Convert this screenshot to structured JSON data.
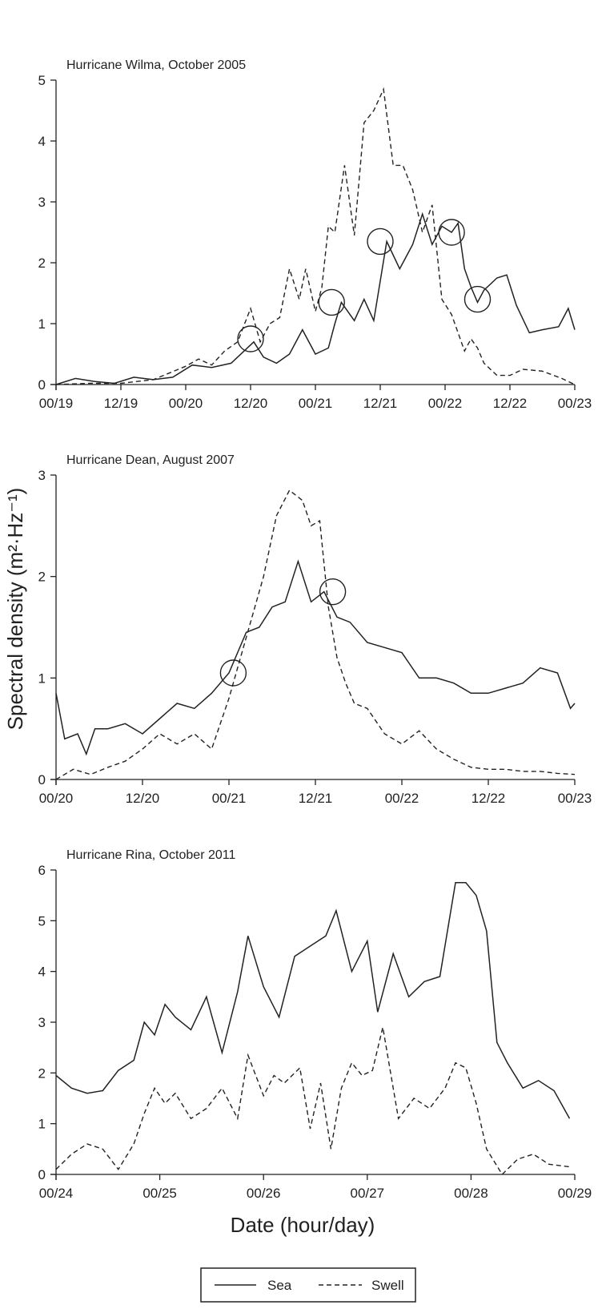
{
  "ylabel": "Spectral density (m²·Hz⁻¹)",
  "xlabel": "Date (hour/day)",
  "legend": [
    {
      "name": "Sea",
      "style": "solid"
    },
    {
      "name": "Swell",
      "style": "dashed"
    }
  ],
  "chart_data": [
    {
      "type": "line",
      "title": "Hurricane Wilma, October 2005",
      "ylabel": "Spectral density (m²·Hz⁻¹)",
      "xlabel": "Date (hour/day)",
      "xticks": [
        "00/19",
        "12/19",
        "00/20",
        "12/20",
        "00/21",
        "12/21",
        "00/22",
        "12/22",
        "00/23"
      ],
      "xlim": [
        0,
        8
      ],
      "ylim": [
        0,
        5
      ],
      "yticks": [
        "0",
        "1",
        "2",
        "3",
        "4",
        "5"
      ],
      "series": [
        {
          "name": "Sea",
          "style": "solid",
          "x": [
            0,
            0.3,
            0.6,
            0.9,
            1.2,
            1.5,
            1.8,
            2.1,
            2.4,
            2.7,
            2.9,
            3.05,
            3.2,
            3.4,
            3.6,
            3.8,
            4.0,
            4.2,
            4.3,
            4.4,
            4.6,
            4.75,
            4.9,
            5.1,
            5.3,
            5.5,
            5.65,
            5.8,
            5.95,
            6.1,
            6.2,
            6.3,
            6.4,
            6.5,
            6.6,
            6.8,
            6.95,
            7.1,
            7.3,
            7.5,
            7.75,
            7.9,
            8.0
          ],
          "y": [
            0,
            0.1,
            0.05,
            0.02,
            0.12,
            0.08,
            0.12,
            0.32,
            0.28,
            0.35,
            0.55,
            0.7,
            0.45,
            0.35,
            0.5,
            0.9,
            0.5,
            0.6,
            1.0,
            1.35,
            1.05,
            1.4,
            1.05,
            2.35,
            1.9,
            2.3,
            2.8,
            2.3,
            2.6,
            2.5,
            2.65,
            1.9,
            1.6,
            1.35,
            1.55,
            1.75,
            1.8,
            1.3,
            0.85,
            0.9,
            0.95,
            1.25,
            0.9
          ]
        },
        {
          "name": "Swell",
          "style": "dashed",
          "x": [
            0,
            0.5,
            1.0,
            1.5,
            2.0,
            2.2,
            2.4,
            2.6,
            2.8,
            3.0,
            3.15,
            3.3,
            3.45,
            3.6,
            3.75,
            3.85,
            4.0,
            4.1,
            4.2,
            4.3,
            4.45,
            4.6,
            4.75,
            4.9,
            5.05,
            5.2,
            5.35,
            5.5,
            5.65,
            5.8,
            5.95,
            6.1,
            6.3,
            6.4,
            6.5,
            6.6,
            6.8,
            7.0,
            7.2,
            7.5,
            7.8,
            8.0
          ],
          "y": [
            0,
            0.02,
            0.02,
            0.08,
            0.3,
            0.42,
            0.32,
            0.55,
            0.7,
            1.25,
            0.7,
            1.0,
            1.1,
            1.9,
            1.4,
            1.9,
            1.2,
            1.6,
            2.6,
            2.5,
            3.6,
            2.45,
            4.3,
            4.5,
            4.85,
            3.6,
            3.6,
            3.2,
            2.5,
            2.95,
            1.4,
            1.15,
            0.55,
            0.75,
            0.6,
            0.35,
            0.15,
            0.15,
            0.25,
            0.22,
            0.1,
            0.0
          ]
        }
      ],
      "circles": [
        {
          "x": 3.0,
          "y": 0.75
        },
        {
          "x": 4.25,
          "y": 1.35
        },
        {
          "x": 5.0,
          "y": 2.35
        },
        {
          "x": 6.1,
          "y": 2.5
        },
        {
          "x": 6.5,
          "y": 1.4
        }
      ]
    },
    {
      "type": "line",
      "title": "Hurricane Dean, August 2007",
      "ylabel": "Spectral density (m²·Hz⁻¹)",
      "xlabel": "Date (hour/day)",
      "xticks": [
        "00/20",
        "12/20",
        "00/21",
        "12/21",
        "00/22",
        "12/22",
        "00/23"
      ],
      "xlim": [
        0,
        6
      ],
      "ylim": [
        0,
        3
      ],
      "yticks": [
        "0",
        "1",
        "2",
        "3"
      ],
      "series": [
        {
          "name": "Sea",
          "style": "solid",
          "x": [
            0,
            0.1,
            0.25,
            0.35,
            0.45,
            0.6,
            0.8,
            1.0,
            1.2,
            1.4,
            1.6,
            1.8,
            2.0,
            2.2,
            2.35,
            2.5,
            2.65,
            2.8,
            2.95,
            3.1,
            3.25,
            3.4,
            3.6,
            3.8,
            4.0,
            4.2,
            4.4,
            4.6,
            4.8,
            5.0,
            5.2,
            5.4,
            5.6,
            5.8,
            5.95,
            6.0
          ],
          "y": [
            0.85,
            0.4,
            0.45,
            0.25,
            0.5,
            0.5,
            0.55,
            0.45,
            0.6,
            0.75,
            0.7,
            0.85,
            1.05,
            1.45,
            1.5,
            1.7,
            1.75,
            2.15,
            1.75,
            1.85,
            1.6,
            1.55,
            1.35,
            1.3,
            1.25,
            1.0,
            1.0,
            0.95,
            0.85,
            0.85,
            0.9,
            0.95,
            1.1,
            1.05,
            0.7,
            0.75
          ]
        },
        {
          "name": "Swell",
          "style": "dashed",
          "x": [
            0,
            0.2,
            0.4,
            0.6,
            0.8,
            1.0,
            1.2,
            1.4,
            1.6,
            1.8,
            2.0,
            2.2,
            2.4,
            2.55,
            2.7,
            2.85,
            2.95,
            3.05,
            3.15,
            3.25,
            3.35,
            3.45,
            3.6,
            3.8,
            4.0,
            4.2,
            4.4,
            4.6,
            4.8,
            5.0,
            5.2,
            5.4,
            5.6,
            5.8,
            6.0
          ],
          "y": [
            0.0,
            0.1,
            0.05,
            0.12,
            0.18,
            0.3,
            0.45,
            0.35,
            0.45,
            0.3,
            0.8,
            1.4,
            2.0,
            2.6,
            2.85,
            2.75,
            2.5,
            2.55,
            1.7,
            1.2,
            0.95,
            0.75,
            0.7,
            0.45,
            0.35,
            0.48,
            0.3,
            0.2,
            0.12,
            0.1,
            0.1,
            0.08,
            0.08,
            0.06,
            0.05
          ]
        }
      ],
      "circles": [
        {
          "x": 2.05,
          "y": 1.05
        },
        {
          "x": 3.2,
          "y": 1.85
        }
      ]
    },
    {
      "type": "line",
      "title": "Hurricane Rina, October 2011",
      "ylabel": "Spectral density (m²·Hz⁻¹)",
      "xlabel": "Date (hour/day)",
      "xticks": [
        "00/24",
        "00/25",
        "00/26",
        "00/27",
        "00/28",
        "00/29"
      ],
      "xlim": [
        0,
        5
      ],
      "ylim": [
        0,
        6
      ],
      "yticks": [
        "0",
        "1",
        "2",
        "3",
        "4",
        "5",
        "6"
      ],
      "series": [
        {
          "name": "Sea",
          "style": "solid",
          "x": [
            0,
            0.15,
            0.3,
            0.45,
            0.6,
            0.75,
            0.85,
            0.95,
            1.05,
            1.15,
            1.3,
            1.45,
            1.6,
            1.75,
            1.85,
            2.0,
            2.15,
            2.3,
            2.45,
            2.6,
            2.7,
            2.85,
            3.0,
            3.1,
            3.25,
            3.4,
            3.55,
            3.7,
            3.85,
            3.95,
            4.05,
            4.15,
            4.25,
            4.35,
            4.5,
            4.65,
            4.8,
            4.95
          ],
          "y": [
            1.95,
            1.7,
            1.6,
            1.65,
            2.05,
            2.25,
            3.0,
            2.75,
            3.35,
            3.1,
            2.85,
            3.5,
            2.4,
            3.6,
            4.7,
            3.7,
            3.1,
            4.3,
            4.5,
            4.7,
            5.2,
            4.0,
            4.6,
            3.2,
            4.35,
            3.5,
            3.8,
            3.9,
            5.75,
            5.75,
            5.5,
            4.8,
            2.6,
            2.2,
            1.7,
            1.85,
            1.65,
            1.1
          ]
        },
        {
          "name": "Swell",
          "style": "dashed",
          "x": [
            0,
            0.15,
            0.3,
            0.45,
            0.6,
            0.75,
            0.85,
            0.95,
            1.05,
            1.15,
            1.3,
            1.45,
            1.6,
            1.75,
            1.85,
            2.0,
            2.1,
            2.2,
            2.35,
            2.45,
            2.55,
            2.65,
            2.75,
            2.85,
            2.95,
            3.05,
            3.15,
            3.3,
            3.45,
            3.6,
            3.75,
            3.85,
            3.95,
            4.05,
            4.15,
            4.3,
            4.45,
            4.6,
            4.75,
            4.95
          ],
          "y": [
            0.1,
            0.4,
            0.6,
            0.5,
            0.1,
            0.6,
            1.2,
            1.7,
            1.4,
            1.6,
            1.1,
            1.3,
            1.7,
            1.1,
            2.35,
            1.55,
            1.95,
            1.8,
            2.1,
            0.9,
            1.8,
            0.5,
            1.7,
            2.2,
            1.95,
            2.05,
            2.9,
            1.1,
            1.5,
            1.3,
            1.7,
            2.2,
            2.1,
            1.4,
            0.5,
            0.0,
            0.3,
            0.4,
            0.2,
            0.15
          ]
        }
      ],
      "circles": []
    }
  ]
}
